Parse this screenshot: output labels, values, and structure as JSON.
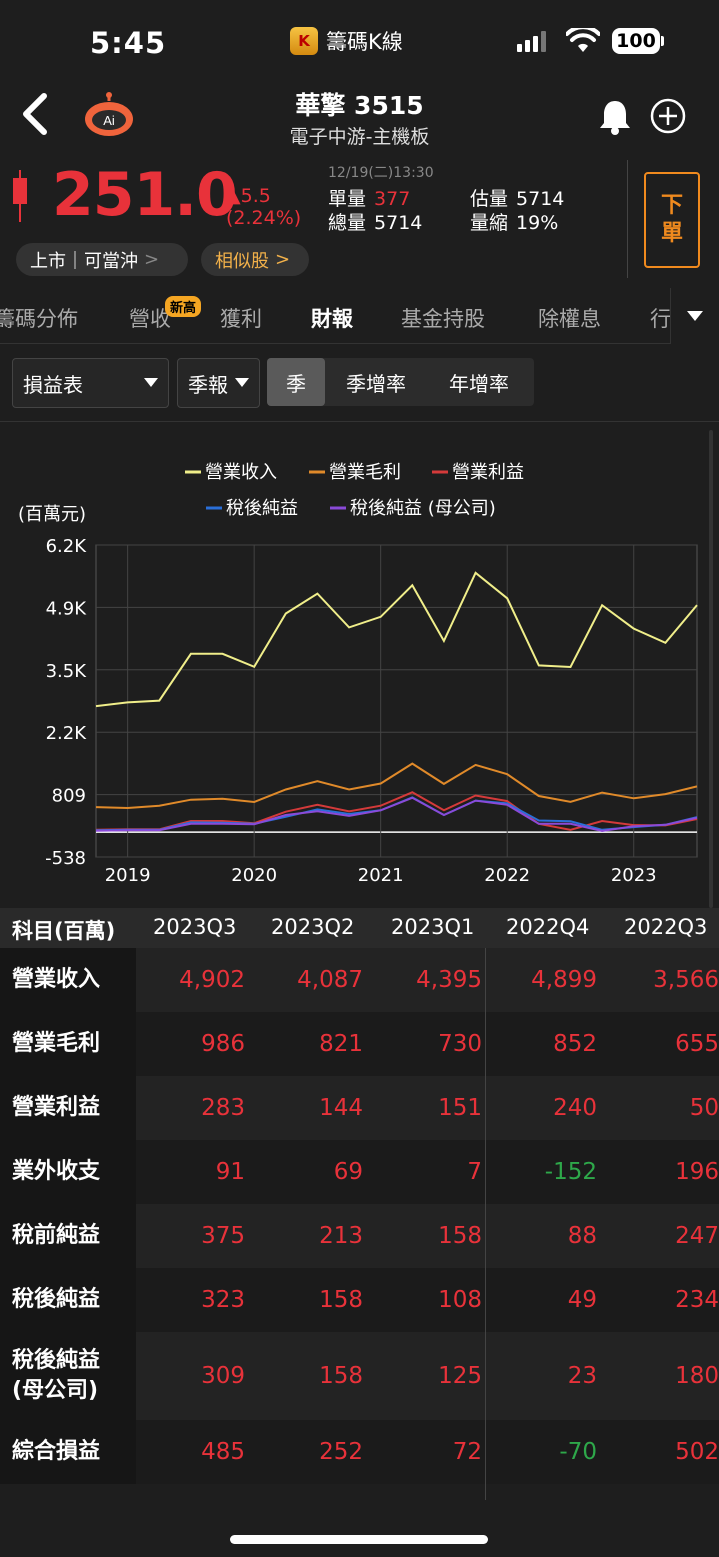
{
  "status": {
    "time": "5:45",
    "app_name": "籌碼K線",
    "battery": "100"
  },
  "header": {
    "name": "華擎 3515",
    "category": "電子中游-主機板",
    "ai_label": "Ai"
  },
  "quote": {
    "price": "251.0",
    "change": "▲5.5",
    "change_pct": "(2.24%)",
    "time": "12/19(二)13:30",
    "single_vol_label": "單量",
    "single_vol": "377",
    "total_vol_label": "總量",
    "total_vol": "5714",
    "est_vol_label": "估量",
    "est_vol": "5714",
    "shrink_label": "量縮",
    "shrink": "19%",
    "order_btn": [
      "下",
      "單"
    ]
  },
  "chips": {
    "market": "上市｜可當沖",
    "similar": "相似股"
  },
  "tabs": [
    "籌碼分佈",
    "營收",
    "獲利",
    "財報",
    "基金持股",
    "除權息",
    "行"
  ],
  "tab_badge": "新高",
  "filters": {
    "statement": "損益表",
    "period": "季報",
    "segments": [
      "季",
      "季增率",
      "年增率"
    ]
  },
  "chart_data": {
    "type": "line",
    "ylabel": "(百萬元)",
    "y_ticks": [
      "6.2K",
      "4.9K",
      "3.5K",
      "2.2K",
      "809",
      "-538"
    ],
    "ylim": [
      -538,
      6200
    ],
    "x_ticks": [
      "2019",
      "2020",
      "2021",
      "2022",
      "2023"
    ],
    "legend": [
      "營業收入",
      "營業毛利",
      "營業利益",
      "稅後純益",
      "稅後純益 (母公司)"
    ],
    "colors": [
      "#f0ee8a",
      "#e08a2a",
      "#d43a3a",
      "#2a6fd8",
      "#8a4ad8"
    ],
    "series": [
      {
        "name": "營業收入",
        "values": [
          2720,
          2800,
          2840,
          3850,
          3850,
          3570,
          4720,
          5150,
          4420,
          4650,
          5330,
          4130,
          5600,
          5050,
          3600,
          3566,
          4899,
          4395,
          4087,
          4902
        ]
      },
      {
        "name": "營業毛利",
        "values": [
          540,
          520,
          570,
          700,
          720,
          650,
          920,
          1100,
          920,
          1050,
          1480,
          1040,
          1450,
          1250,
          780,
          655,
          852,
          730,
          821,
          986
        ]
      },
      {
        "name": "營業利益",
        "values": [
          50,
          60,
          60,
          240,
          240,
          190,
          440,
          590,
          450,
          570,
          860,
          470,
          790,
          670,
          180,
          50,
          240,
          151,
          144,
          283
        ]
      },
      {
        "name": "稅後純益",
        "values": [
          40,
          50,
          50,
          210,
          200,
          180,
          330,
          490,
          390,
          470,
          750,
          370,
          680,
          620,
          250,
          234,
          49,
          108,
          158,
          323
        ]
      },
      {
        "name": "稅後純益 (母公司)",
        "values": [
          30,
          40,
          40,
          180,
          180,
          170,
          370,
          450,
          350,
          470,
          740,
          370,
          680,
          590,
          180,
          180,
          23,
          125,
          158,
          309
        ]
      }
    ]
  },
  "table": {
    "corner": "科目(百萬)",
    "columns": [
      "2023Q3",
      "2023Q2",
      "2023Q1",
      "2022Q4",
      "2022Q3"
    ],
    "rows": [
      {
        "label": "營業收入",
        "values": [
          "4,902",
          "4,087",
          "4,395",
          "4,899",
          "3,566"
        ]
      },
      {
        "label": "營業毛利",
        "values": [
          "986",
          "821",
          "730",
          "852",
          "655"
        ]
      },
      {
        "label": "營業利益",
        "values": [
          "283",
          "144",
          "151",
          "240",
          "50"
        ]
      },
      {
        "label": "業外收支",
        "values": [
          "91",
          "69",
          "7",
          "-152",
          "196"
        ]
      },
      {
        "label": "稅前純益",
        "values": [
          "375",
          "213",
          "158",
          "88",
          "247"
        ]
      },
      {
        "label": "稅後純益",
        "values": [
          "323",
          "158",
          "108",
          "49",
          "234"
        ]
      },
      {
        "label": "稅後純益\n(母公司)",
        "values": [
          "309",
          "158",
          "125",
          "23",
          "180"
        ]
      },
      {
        "label": "綜合損益",
        "values": [
          "485",
          "252",
          "72",
          "-70",
          "502"
        ]
      }
    ]
  }
}
